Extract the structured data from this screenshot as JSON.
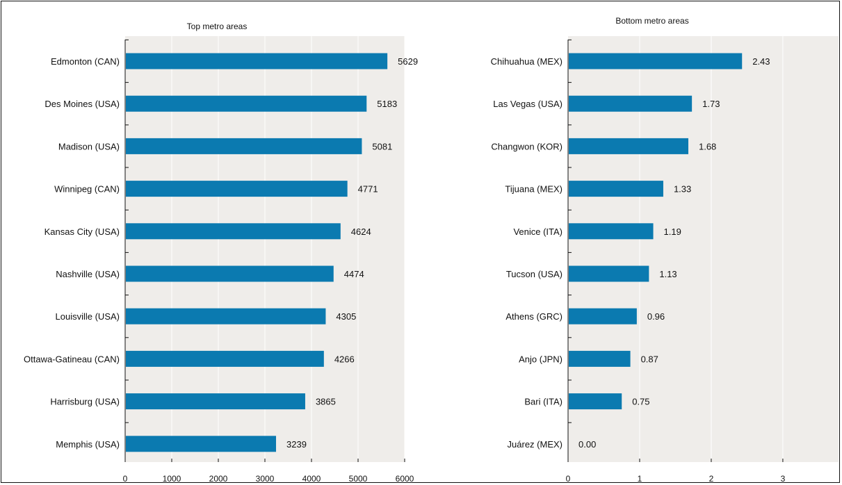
{
  "chart_data": [
    {
      "type": "bar",
      "orientation": "horizontal",
      "title": "Top metro areas",
      "categories": [
        "Edmonton (CAN)",
        "Des Moines (USA)",
        "Madison (USA)",
        "Winnipeg (CAN)",
        "Kansas City (USA)",
        "Nashville (USA)",
        "Louisville (USA)",
        "Ottawa-Gatineau (CAN)",
        "Harrisburg (USA)",
        "Memphis (USA)"
      ],
      "values": [
        5629,
        5183,
        5081,
        4771,
        4624,
        4474,
        4305,
        4266,
        3865,
        3239
      ],
      "value_labels": [
        "5629",
        "5183",
        "5081",
        "4771",
        "4624",
        "4474",
        "4305",
        "4266",
        "3865",
        "3239"
      ],
      "xlim": [
        0,
        6000
      ],
      "xticks": [
        0,
        1000,
        2000,
        3000,
        4000,
        5000,
        6000
      ],
      "xtick_labels": [
        "0",
        "1000",
        "2000",
        "3000",
        "4000",
        "5000",
        "6000"
      ],
      "grid": true,
      "bar_color": "#0b7ab0",
      "plot_background": "#efedea",
      "gridline_color": "#ffffff"
    },
    {
      "type": "bar",
      "orientation": "horizontal",
      "title": "Bottom metro areas",
      "categories": [
        "Chihuahua (MEX)",
        "Las Vegas (USA)",
        "Changwon (KOR)",
        "Tijuana (MEX)",
        "Venice (ITA)",
        "Tucson (USA)",
        "Athens (GRC)",
        "Anjo (JPN)",
        "Bari (ITA)",
        "Juárez (MEX)"
      ],
      "values": [
        2.43,
        1.73,
        1.68,
        1.33,
        1.19,
        1.13,
        0.96,
        0.87,
        0.75,
        0.0
      ],
      "value_labels": [
        "2.43",
        "1.73",
        "1.68",
        "1.33",
        "1.19",
        "1.13",
        "0.96",
        "0.87",
        "0.75",
        "0.00"
      ],
      "xlim": [
        0,
        3.7
      ],
      "xticks": [
        0,
        1,
        2,
        3
      ],
      "xtick_labels": [
        "0",
        "1",
        "2",
        "3"
      ],
      "grid": true,
      "bar_color": "#0b7ab0",
      "plot_background": "#efedea",
      "gridline_color": "#ffffff"
    }
  ]
}
